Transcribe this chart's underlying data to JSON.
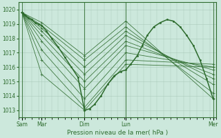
{
  "xlabel": "Pression niveau de la mer( hPa )",
  "background_color": "#cce8dc",
  "line_color": "#2d6b2d",
  "grid_color": "#aacaba",
  "ylim": [
    1012.5,
    1020.5
  ],
  "yticks": [
    1013,
    1014,
    1015,
    1016,
    1017,
    1018,
    1019,
    1020
  ],
  "xlim": [
    0,
    120
  ],
  "xtick_positions": [
    2,
    14,
    40,
    65,
    118
  ],
  "xtick_labels": [
    "Sam",
    "Mar",
    "Dim",
    "Lun",
    "Mer"
  ],
  "vlines": [
    2,
    40,
    65,
    118
  ],
  "lines": [
    {
      "x": [
        2,
        14,
        40,
        65,
        118
      ],
      "y": [
        1019.8,
        1019.1,
        1016.8,
        1019.2,
        1013.8
      ]
    },
    {
      "x": [
        2,
        14,
        40,
        65,
        118
      ],
      "y": [
        1019.8,
        1018.9,
        1016.5,
        1018.8,
        1014.2
      ]
    },
    {
      "x": [
        2,
        14,
        40,
        65,
        118
      ],
      "y": [
        1019.8,
        1018.7,
        1016.0,
        1018.5,
        1014.8
      ]
    },
    {
      "x": [
        2,
        14,
        40,
        65,
        118
      ],
      "y": [
        1019.8,
        1018.5,
        1015.5,
        1018.2,
        1015.2
      ]
    },
    {
      "x": [
        2,
        14,
        40,
        65,
        118
      ],
      "y": [
        1019.8,
        1018.2,
        1015.0,
        1017.8,
        1015.5
      ]
    },
    {
      "x": [
        2,
        14,
        40,
        65,
        118
      ],
      "y": [
        1019.8,
        1017.8,
        1014.5,
        1017.5,
        1015.8
      ]
    },
    {
      "x": [
        2,
        14,
        40,
        65,
        118
      ],
      "y": [
        1019.8,
        1017.2,
        1013.8,
        1017.0,
        1016.0
      ]
    },
    {
      "x": [
        2,
        14,
        40,
        65,
        118
      ],
      "y": [
        1019.8,
        1016.5,
        1013.2,
        1016.5,
        1016.2
      ]
    },
    {
      "x": [
        2,
        14,
        40,
        65,
        118
      ],
      "y": [
        1019.8,
        1015.5,
        1013.0,
        1016.2,
        1016.0
      ]
    }
  ],
  "main_line_x": [
    2,
    4,
    6,
    8,
    10,
    12,
    14,
    17,
    20,
    24,
    28,
    32,
    36,
    40,
    43,
    46,
    50,
    54,
    58,
    62,
    65,
    68,
    72,
    75,
    78,
    82,
    86,
    90,
    94,
    98,
    102,
    106,
    110,
    114,
    118
  ],
  "main_line_y": [
    1019.8,
    1019.6,
    1019.4,
    1019.3,
    1019.1,
    1019.0,
    1018.9,
    1018.5,
    1018.0,
    1017.4,
    1016.7,
    1016.0,
    1015.3,
    1013.0,
    1013.1,
    1013.4,
    1014.0,
    1014.8,
    1015.4,
    1015.7,
    1015.8,
    1016.2,
    1016.8,
    1017.5,
    1018.2,
    1018.8,
    1019.1,
    1019.3,
    1019.2,
    1018.8,
    1018.2,
    1017.5,
    1016.5,
    1015.2,
    1013.8
  ]
}
